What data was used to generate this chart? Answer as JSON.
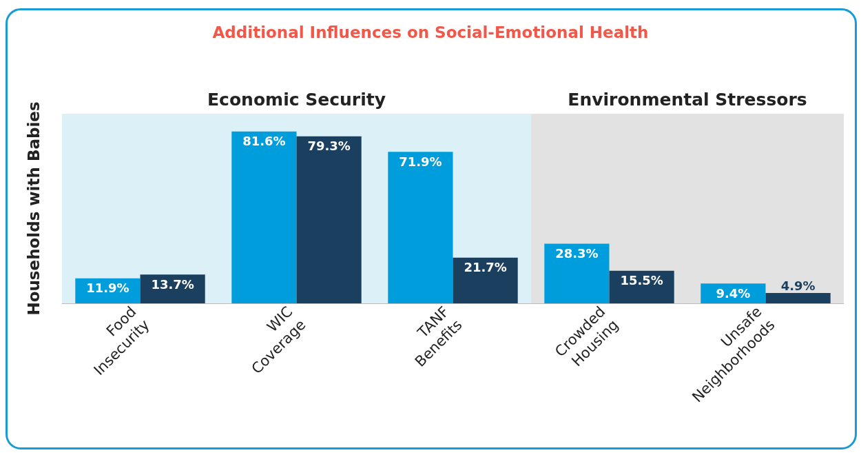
{
  "chart_data": {
    "type": "bar",
    "title": "Additional Influences on Social-Emotional Health",
    "ylabel": "Households with Babies",
    "categories": [
      "Food Insecurity",
      "WIC Coverage",
      "TANF Benefits",
      "Crowded Housing",
      "Unsafe Neighborhoods"
    ],
    "series": [
      {
        "color": "#009ddc",
        "values": [
          11.9,
          81.6,
          71.9,
          28.3,
          9.4
        ],
        "value_labels": [
          "11.9%",
          "81.6%",
          "71.9%",
          "28.3%",
          "9.4%"
        ]
      },
      {
        "color": "#1b3f5e",
        "values": [
          13.7,
          79.3,
          21.7,
          15.5,
          4.9
        ],
        "value_labels": [
          "13.7%",
          "79.3%",
          "21.7%",
          "15.5%",
          "4.9%"
        ]
      }
    ],
    "tick_labels": "x",
    "bands": [
      {
        "axis": "x",
        "from": "Food Insecurity",
        "to": "TANF Benefits",
        "label": "Economic Security",
        "color": "#dcf0f8"
      },
      {
        "axis": "x",
        "from": "Crowded Housing",
        "to": "Unsafe Neighborhoods",
        "label": "Environmental Stressors",
        "color": "#e2e2e2"
      }
    ]
  }
}
